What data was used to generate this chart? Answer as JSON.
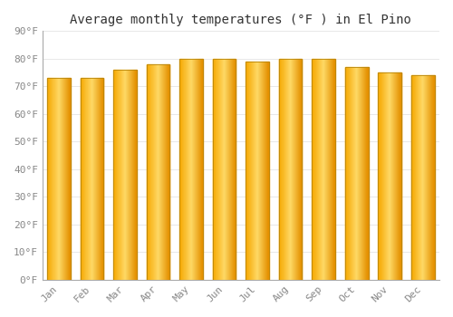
{
  "title": "Average monthly temperatures (°F ) in El Pino",
  "months": [
    "Jan",
    "Feb",
    "Mar",
    "Apr",
    "May",
    "Jun",
    "Jul",
    "Aug",
    "Sep",
    "Oct",
    "Nov",
    "Dec"
  ],
  "values": [
    73,
    73,
    76,
    78,
    80,
    80,
    79,
    80,
    80,
    77,
    75,
    74
  ],
  "bar_color_left": "#F5A800",
  "bar_color_center": "#FFD966",
  "bar_color_right": "#E59000",
  "bar_edge_color": "#B8860B",
  "background_color": "#FFFFFF",
  "plot_bg_color": "#FFFFFF",
  "ylim": [
    0,
    90
  ],
  "yticks": [
    0,
    10,
    20,
    30,
    40,
    50,
    60,
    70,
    80,
    90
  ],
  "ytick_labels": [
    "0°F",
    "10°F",
    "20°F",
    "30°F",
    "40°F",
    "50°F",
    "60°F",
    "70°F",
    "80°F",
    "90°F"
  ],
  "grid_color": "#E8E8E8",
  "title_fontsize": 10,
  "tick_fontsize": 8,
  "tick_color": "#888888",
  "bar_width": 0.7,
  "gradient_steps": 50,
  "figsize": [
    5.0,
    3.5
  ],
  "dpi": 100
}
